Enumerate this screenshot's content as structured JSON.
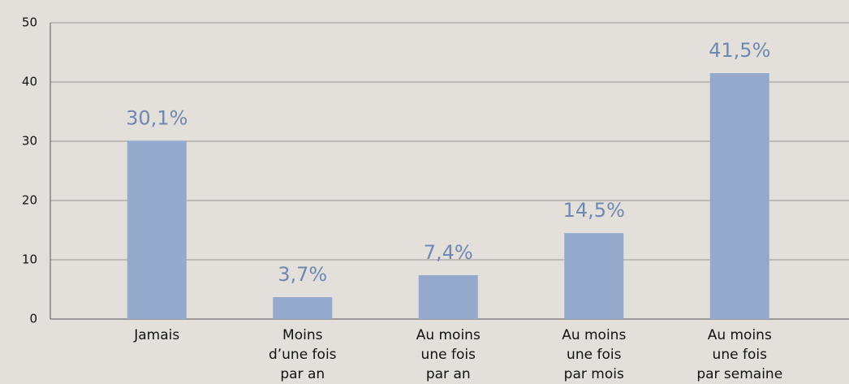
{
  "chart_data": {
    "type": "bar",
    "categories": [
      "Jamais",
      "Moins\nd’une fois\npar an",
      "Au moins\nune fois\npar an",
      "Au moins\nune fois\npar mois",
      "Au moins\nune fois\npar semaine"
    ],
    "values": [
      30.1,
      3.7,
      7.4,
      14.5,
      41.5
    ],
    "value_labels": [
      "30,1%",
      "3,7%",
      "7,4%",
      "14,5%",
      "41,5%"
    ],
    "color": "#94a9cb",
    "ylim": [
      0,
      50
    ],
    "yticks": [
      0,
      10,
      20,
      30,
      40,
      50
    ],
    "grid": true
  }
}
